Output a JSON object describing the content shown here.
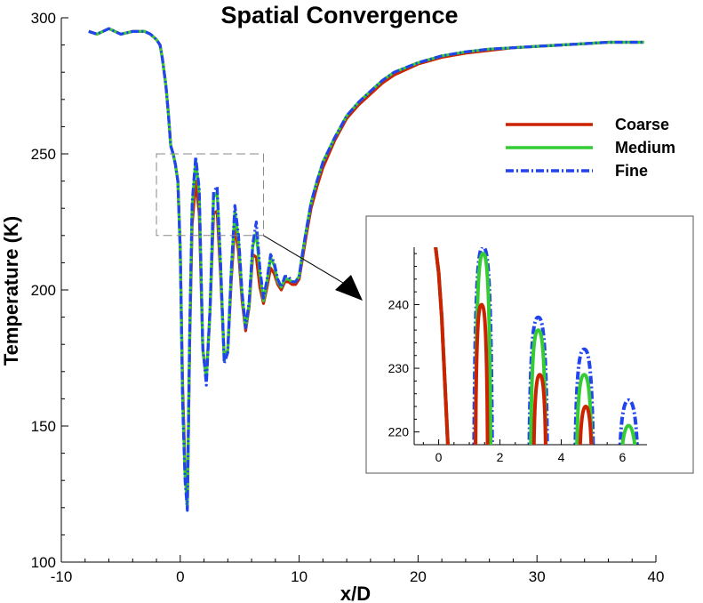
{
  "chart_data": {
    "type": "line",
    "title": "Spatial Convergence",
    "xlabel": "x/D",
    "ylabel": "Temperature (K)",
    "xlim": [
      -10,
      40
    ],
    "ylim": [
      100,
      300
    ],
    "x_ticks": [
      -10,
      0,
      10,
      20,
      30,
      40
    ],
    "y_ticks": [
      100,
      150,
      200,
      250,
      300
    ],
    "legend_position": "right",
    "grid": false,
    "series": [
      {
        "name": "Coarse",
        "color": "#cc2200",
        "style": "solid",
        "x": [
          -7.7,
          -7.0,
          -6.5,
          -6.0,
          -5.5,
          -5.0,
          -4.0,
          -3.0,
          -2.5,
          -2.0,
          -1.7,
          -1.5,
          -1.2,
          -1.0,
          -0.8,
          -0.6,
          -0.4,
          -0.2,
          0.0,
          0.2,
          0.4,
          0.6,
          0.8,
          1.0,
          1.3,
          1.6,
          1.9,
          2.2,
          2.5,
          2.8,
          3.1,
          3.4,
          3.7,
          4.0,
          4.3,
          4.6,
          4.9,
          5.2,
          5.5,
          5.8,
          6.1,
          6.4,
          6.7,
          7.0,
          7.3,
          7.6,
          7.9,
          8.2,
          8.5,
          8.8,
          9.1,
          9.4,
          9.7,
          10.0,
          10.3,
          10.6,
          11.0,
          11.5,
          12.0,
          13.0,
          14.0,
          15.0,
          16.0,
          17.0,
          18.0,
          20.0,
          22.0,
          24.0,
          26.0,
          28.0,
          30.0,
          32.0,
          34.0,
          36.0,
          38.0,
          39.0
        ],
        "values": [
          295,
          294,
          295,
          296,
          295,
          294,
          295,
          295,
          294,
          292,
          290,
          285,
          275,
          265,
          253,
          250,
          246,
          240,
          215,
          165,
          135,
          120,
          182,
          224,
          240,
          228,
          178,
          168,
          192,
          228,
          229,
          205,
          175,
          178,
          204,
          224,
          214,
          196,
          185,
          194,
          213,
          212,
          201,
          195,
          201,
          208,
          206,
          202,
          200,
          203,
          203,
          202,
          202,
          204,
          212,
          220,
          230,
          238,
          245,
          255,
          263,
          268,
          272,
          276,
          279,
          283,
          285.5,
          287,
          288,
          289,
          289.5,
          290,
          290.5,
          291,
          291,
          291
        ]
      },
      {
        "name": "Medium",
        "color": "#33cc33",
        "style": "solid",
        "x": [
          -7.7,
          -7.0,
          -6.5,
          -6.0,
          -5.5,
          -5.0,
          -4.0,
          -3.0,
          -2.5,
          -2.0,
          -1.7,
          -1.5,
          -1.2,
          -1.0,
          -0.8,
          -0.6,
          -0.4,
          -0.2,
          0.0,
          0.2,
          0.4,
          0.6,
          0.8,
          1.0,
          1.3,
          1.6,
          1.9,
          2.2,
          2.5,
          2.8,
          3.1,
          3.4,
          3.7,
          4.0,
          4.3,
          4.6,
          4.9,
          5.2,
          5.5,
          5.8,
          6.1,
          6.4,
          6.7,
          7.0,
          7.3,
          7.6,
          7.9,
          8.2,
          8.5,
          8.8,
          9.1,
          9.4,
          9.7,
          10.0,
          10.3,
          10.6,
          11.0,
          11.5,
          12.0,
          13.0,
          14.0,
          15.0,
          16.0,
          17.0,
          18.0,
          20.0,
          22.0,
          24.0,
          26.0,
          28.0,
          30.0,
          32.0,
          34.0,
          36.0,
          38.0,
          39.0
        ],
        "values": [
          295,
          294,
          295,
          296,
          295,
          294,
          295,
          295,
          294,
          292,
          290,
          285,
          275,
          265,
          253,
          250,
          246,
          240,
          215,
          160,
          132,
          120,
          185,
          230,
          248,
          235,
          178,
          167,
          192,
          234,
          236,
          208,
          174,
          178,
          207,
          229,
          218,
          198,
          186,
          195,
          216,
          221,
          206,
          196,
          203,
          212,
          209,
          203,
          201,
          204,
          204,
          203,
          203,
          205,
          214,
          222,
          232,
          240,
          247,
          256,
          264,
          269,
          273,
          277,
          280,
          283.5,
          286,
          287.5,
          288.5,
          289,
          289.5,
          290,
          290.5,
          291,
          291,
          291
        ]
      },
      {
        "name": "Fine",
        "color": "#2244ee",
        "style": "dashdot",
        "x": [
          -7.7,
          -7.0,
          -6.5,
          -6.0,
          -5.5,
          -5.0,
          -4.0,
          -3.0,
          -2.5,
          -2.0,
          -1.7,
          -1.5,
          -1.2,
          -1.0,
          -0.8,
          -0.6,
          -0.4,
          -0.2,
          0.0,
          0.2,
          0.4,
          0.6,
          0.8,
          1.0,
          1.3,
          1.6,
          1.9,
          2.2,
          2.5,
          2.8,
          3.1,
          3.4,
          3.7,
          4.0,
          4.3,
          4.6,
          4.9,
          5.2,
          5.5,
          5.8,
          6.1,
          6.4,
          6.7,
          7.0,
          7.3,
          7.6,
          7.9,
          8.2,
          8.5,
          8.8,
          9.1,
          9.4,
          9.7,
          10.0,
          10.3,
          10.6,
          11.0,
          11.5,
          12.0,
          13.0,
          14.0,
          15.0,
          16.0,
          17.0,
          18.0,
          20.0,
          22.0,
          24.0,
          26.0,
          28.0,
          30.0,
          32.0,
          34.0,
          36.0,
          38.0,
          39.0
        ],
        "values": [
          295,
          294,
          295,
          296,
          295,
          294,
          295,
          295,
          294,
          292,
          290,
          285,
          275,
          265,
          253,
          250,
          246,
          240,
          215,
          158,
          130,
          119,
          186,
          232,
          249,
          237,
          179,
          165,
          193,
          236,
          238,
          209,
          173,
          177,
          208,
          231,
          220,
          199,
          186,
          196,
          217,
          225,
          208,
          197,
          204,
          213,
          210,
          204,
          201,
          205,
          205,
          203,
          203,
          205,
          214,
          222,
          232,
          240,
          247,
          256,
          264,
          269,
          273,
          277,
          280,
          283.5,
          286,
          287.5,
          288.5,
          289,
          289.5,
          290,
          290.5,
          291,
          291,
          291
        ]
      }
    ],
    "inset": {
      "type": "line",
      "xlim": [
        -0.8,
        6.8
      ],
      "ylim": [
        218,
        249
      ],
      "x_ticks": [
        0,
        2,
        4,
        6
      ],
      "y_ticks": [
        220,
        230,
        240
      ],
      "zoom_box": {
        "x": [
          -2,
          7
        ],
        "y": [
          220,
          250
        ]
      },
      "series": [
        {
          "name": "Coarse",
          "peaks": [
            {
              "x": 1.4,
              "y": 240
            },
            {
              "x": 3.3,
              "y": 229
            },
            {
              "x": 4.8,
              "y": 224
            }
          ]
        },
        {
          "name": "Medium",
          "peaks": [
            {
              "x": 1.45,
              "y": 248
            },
            {
              "x": 3.25,
              "y": 236
            },
            {
              "x": 4.75,
              "y": 229
            },
            {
              "x": 6.2,
              "y": 221
            }
          ]
        },
        {
          "name": "Fine",
          "peaks": [
            {
              "x": 1.45,
              "y": 249
            },
            {
              "x": 3.25,
              "y": 238
            },
            {
              "x": 4.75,
              "y": 233
            },
            {
              "x": 6.2,
              "y": 225
            }
          ]
        }
      ],
      "left_line_x": [
        -0.1,
        0.0,
        0.1,
        0.2,
        0.3
      ],
      "left_line_y": [
        249,
        245,
        238,
        228,
        218
      ]
    }
  }
}
